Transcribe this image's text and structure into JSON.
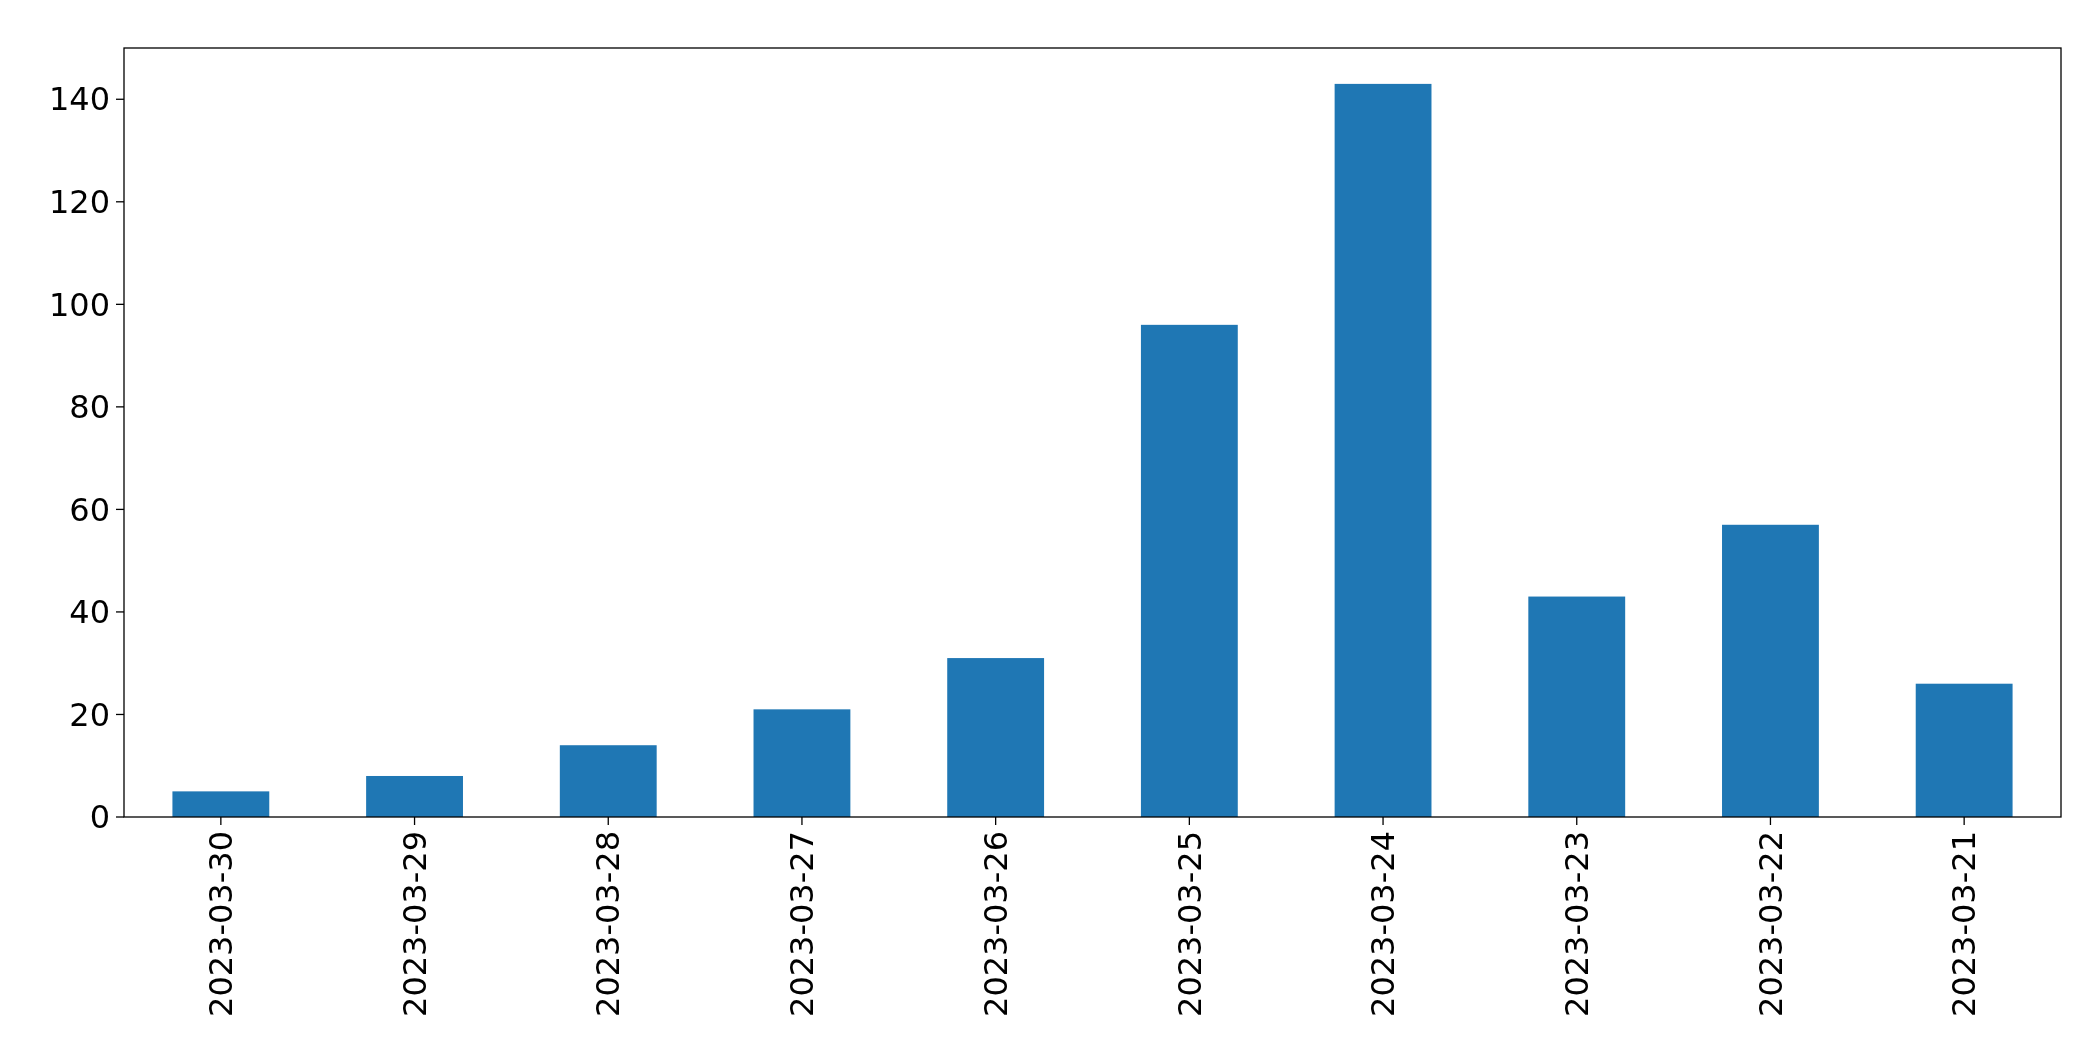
{
  "chart_data": {
    "type": "bar",
    "categories": [
      "2023-03-30",
      "2023-03-29",
      "2023-03-28",
      "2023-03-27",
      "2023-03-26",
      "2023-03-25",
      "2023-03-24",
      "2023-03-23",
      "2023-03-22",
      "2023-03-21"
    ],
    "values": [
      5,
      8,
      14,
      21,
      31,
      96,
      143,
      43,
      57,
      26
    ],
    "color": "#1f77b4",
    "ylim": [
      0,
      150
    ],
    "yticks": [
      0,
      20,
      40,
      60,
      80,
      100,
      120,
      140
    ]
  }
}
